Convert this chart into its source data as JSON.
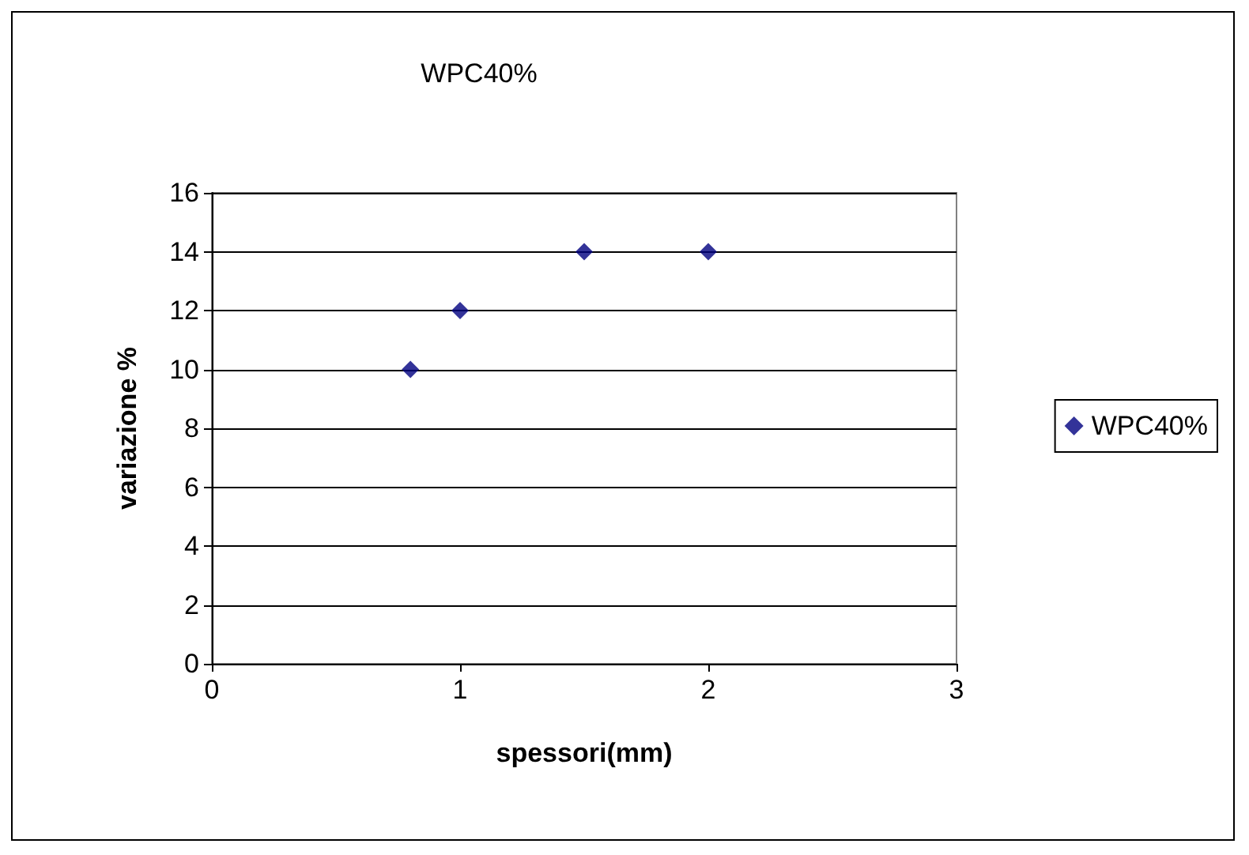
{
  "chart_data": {
    "type": "scatter",
    "title": "WPC40%",
    "xlabel": "spessori(mm)",
    "ylabel": "variazione %",
    "x": [
      0.8,
      1,
      1.5,
      2
    ],
    "series": [
      {
        "name": "WPC40%",
        "color": "#000080",
        "values": [
          10,
          12,
          14,
          14
        ]
      }
    ],
    "xlim": [
      0,
      3
    ],
    "xticks": [
      0,
      1,
      2,
      3
    ],
    "ylim": [
      0,
      16
    ],
    "yticks": [
      0,
      2,
      4,
      6,
      8,
      10,
      12,
      14,
      16
    ],
    "grid": "y",
    "legend": "right",
    "marker": "diamond"
  }
}
